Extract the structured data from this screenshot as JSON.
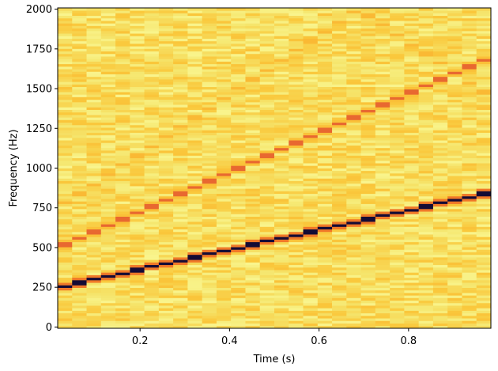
{
  "chart_data": {
    "type": "heatmap",
    "title": "",
    "xlabel": "Time (s)",
    "ylabel": "Frequency (Hz)",
    "xlim": [
      0.016,
      0.984
    ],
    "ylim": [
      -8,
      2008
    ],
    "x_ticks": [
      0.2,
      0.4,
      0.6,
      0.8
    ],
    "x_tick_labels": [
      "0.2",
      "0.4",
      "0.6",
      "0.8"
    ],
    "y_ticks": [
      0,
      250,
      500,
      750,
      1000,
      1250,
      1500,
      1750,
      2000
    ],
    "y_tick_labels": [
      "0",
      "250",
      "500",
      "750",
      "1000",
      "1250",
      "1500",
      "1750",
      "2000"
    ],
    "colormap": "inferno_r",
    "time_bins": 30,
    "frequency_bins": 126,
    "grid": false,
    "legend": "none",
    "harmonics": [
      {
        "start_hz": 250,
        "end_hz": 850,
        "intensity": 1.0
      },
      {
        "start_hz": 500,
        "end_hz": 1700,
        "intensity": 0.55
      },
      {
        "start_hz": 750,
        "end_hz": 2550,
        "intensity": 0.3
      }
    ]
  }
}
